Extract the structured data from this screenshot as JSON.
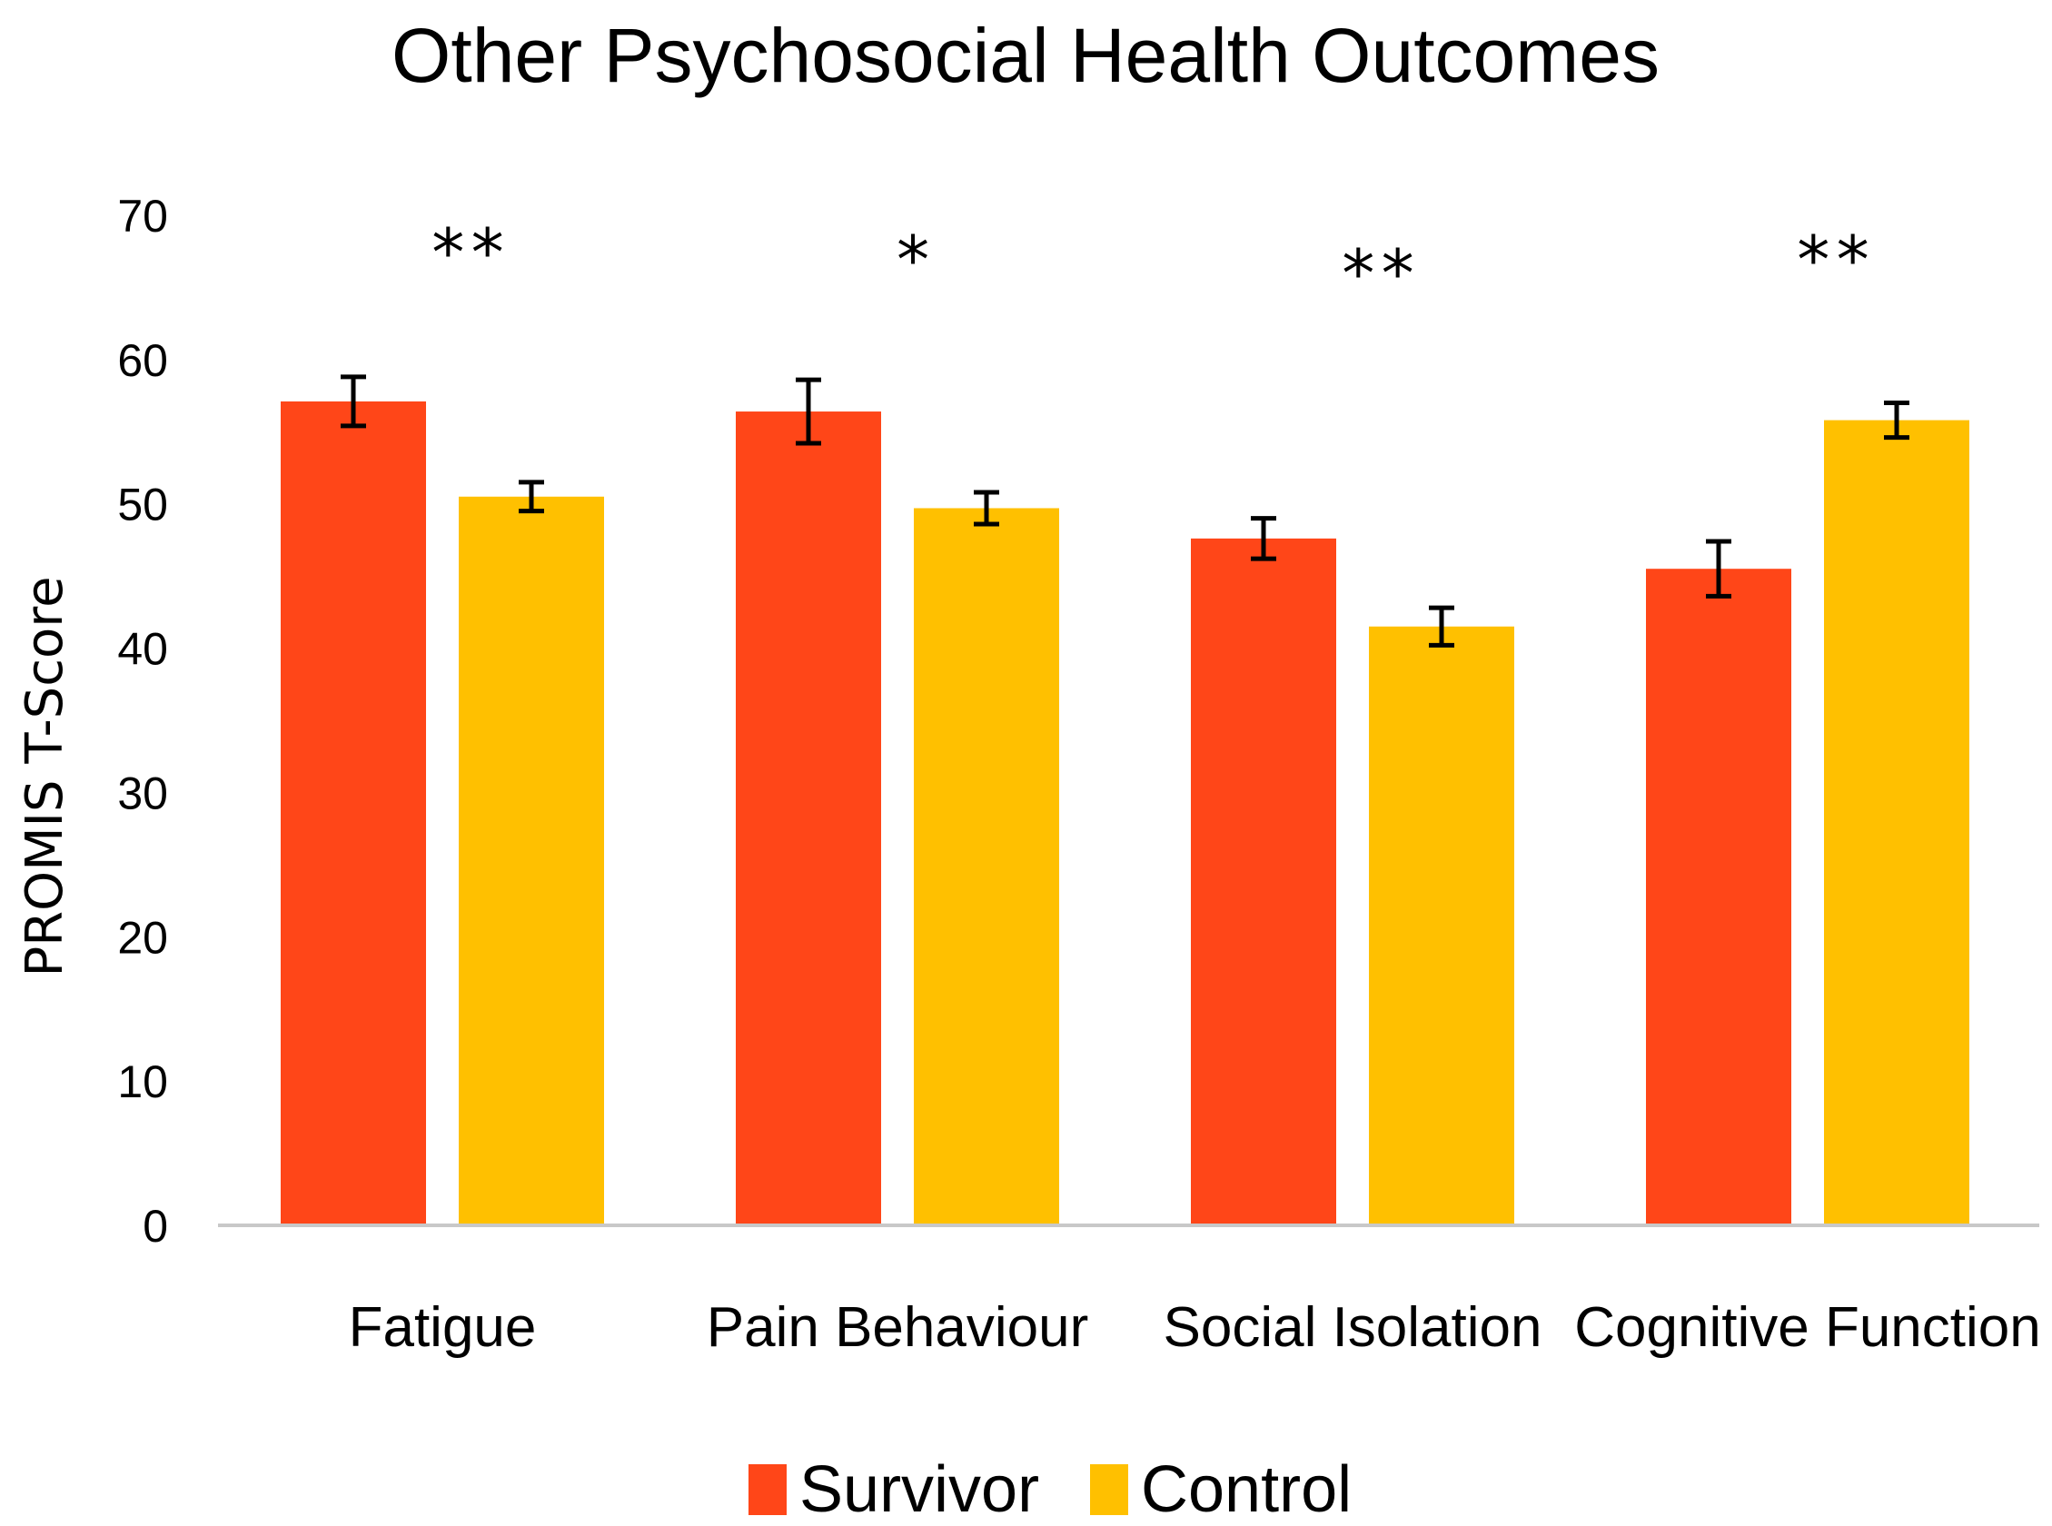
{
  "chart_data": {
    "type": "bar",
    "title": "Other Psychosocial Health Outcomes",
    "xlabel": "",
    "ylabel": "PROMIS T-Score",
    "ylim": [
      0,
      70
    ],
    "yticks": [
      0,
      10,
      20,
      30,
      40,
      50,
      60,
      70
    ],
    "grid": false,
    "legend_position": "bottom-center",
    "categories": [
      "Fatigue",
      "Pain Behaviour",
      "Social Isolation",
      "Cognitive Function"
    ],
    "significance": [
      "**",
      "*",
      "**",
      "**"
    ],
    "series": [
      {
        "name": "Survivor",
        "color": "#ff4618",
        "values": [
          57.1,
          56.4,
          47.6,
          45.5
        ],
        "error": [
          1.7,
          2.2,
          1.4,
          1.9
        ]
      },
      {
        "name": "Control",
        "color": "#ffc000",
        "values": [
          50.5,
          49.7,
          41.5,
          55.8
        ],
        "error": [
          1.0,
          1.1,
          1.3,
          1.2
        ]
      }
    ]
  }
}
